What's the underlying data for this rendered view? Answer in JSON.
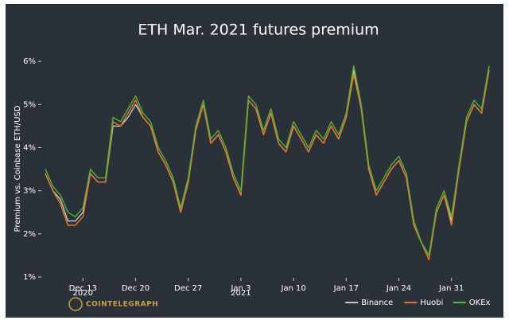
{
  "chart_data": {
    "type": "line",
    "title": "ETH Mar. 2021 futures premium",
    "y_label": "Premium vs. Coinbase ETH/USD",
    "watermark": "COINTELEGRAPH",
    "x": [
      "2020-12-08",
      "2020-12-09",
      "2020-12-10",
      "2020-12-11",
      "2020-12-12",
      "2020-12-13",
      "2020-12-14",
      "2020-12-15",
      "2020-12-16",
      "2020-12-17",
      "2020-12-18",
      "2020-12-19",
      "2020-12-20",
      "2020-12-21",
      "2020-12-22",
      "2020-12-23",
      "2020-12-24",
      "2020-12-25",
      "2020-12-26",
      "2020-12-27",
      "2020-12-28",
      "2020-12-29",
      "2020-12-30",
      "2020-12-31",
      "2021-01-01",
      "2021-01-02",
      "2021-01-03",
      "2021-01-04",
      "2021-01-05",
      "2021-01-06",
      "2021-01-07",
      "2021-01-08",
      "2021-01-09",
      "2021-01-10",
      "2021-01-11",
      "2021-01-12",
      "2021-01-13",
      "2021-01-14",
      "2021-01-15",
      "2021-01-16",
      "2021-01-17",
      "2021-01-18",
      "2021-01-19",
      "2021-01-20",
      "2021-01-21",
      "2021-01-22",
      "2021-01-23",
      "2021-01-24",
      "2021-01-25",
      "2021-01-26",
      "2021-01-27",
      "2021-01-28",
      "2021-01-29",
      "2021-01-30",
      "2021-01-31",
      "2021-02-01",
      "2021-02-02",
      "2021-02-03",
      "2021-02-04",
      "2021-02-05"
    ],
    "xlim": [
      "2020-12-08",
      "2021-02-05"
    ],
    "xticks": [
      {
        "value": "2020-12-13",
        "label": "Dec 13"
      },
      {
        "value": "2020-12-20",
        "label": "Dec 20"
      },
      {
        "value": "2020-12-27",
        "label": "Dec 27"
      },
      {
        "value": "2021-01-03",
        "label": "Jan 3"
      },
      {
        "value": "2021-01-10",
        "label": "Jan 10"
      },
      {
        "value": "2021-01-17",
        "label": "Jan 17"
      },
      {
        "value": "2021-01-24",
        "label": "Jan 24"
      },
      {
        "value": "2021-01-31",
        "label": "Jan 31"
      }
    ],
    "year_labels": [
      {
        "value": "2020-12-13",
        "label": "2020"
      },
      {
        "value": "2021-01-03",
        "label": "2021"
      }
    ],
    "ylim": [
      1,
      6.5
    ],
    "yticks": [
      {
        "value": 1,
        "label": "1%"
      },
      {
        "value": 2,
        "label": "2%"
      },
      {
        "value": 3,
        "label": "3%"
      },
      {
        "value": 4,
        "label": "4%"
      },
      {
        "value": 5,
        "label": "5%"
      },
      {
        "value": 6,
        "label": "6%"
      }
    ],
    "legend": "lower right",
    "series": [
      {
        "name": "Binance",
        "color": "#c8c8c8",
        "values": [
          3.4,
          3.0,
          2.8,
          2.3,
          2.3,
          2.5,
          3.4,
          3.2,
          3.2,
          4.5,
          4.5,
          4.7,
          5.0,
          4.7,
          4.5,
          3.9,
          3.6,
          3.2,
          2.5,
          3.2,
          4.4,
          5.0,
          4.1,
          4.3,
          3.9,
          3.3,
          2.9,
          5.1,
          4.9,
          4.3,
          4.8,
          4.1,
          3.9,
          4.5,
          4.2,
          3.9,
          4.3,
          4.1,
          4.5,
          4.2,
          4.7,
          5.8,
          4.9,
          3.5,
          2.9,
          3.2,
          3.5,
          3.7,
          3.3,
          2.2,
          1.8,
          1.5,
          2.5,
          2.9,
          2.3,
          3.5,
          4.6,
          5.0,
          4.8,
          5.8
        ]
      },
      {
        "name": "Huobi",
        "color": "#e8782c",
        "values": [
          3.4,
          3.0,
          2.7,
          2.2,
          2.2,
          2.4,
          3.4,
          3.2,
          3.2,
          4.6,
          4.5,
          4.8,
          5.1,
          4.7,
          4.5,
          3.9,
          3.6,
          3.2,
          2.5,
          3.2,
          4.4,
          5.0,
          4.1,
          4.3,
          3.9,
          3.3,
          2.9,
          5.1,
          4.9,
          4.3,
          4.8,
          4.1,
          3.9,
          4.5,
          4.2,
          3.9,
          4.3,
          4.1,
          4.5,
          4.2,
          4.7,
          5.7,
          4.9,
          3.5,
          2.9,
          3.2,
          3.5,
          3.7,
          3.3,
          2.2,
          1.8,
          1.4,
          2.5,
          2.9,
          2.2,
          3.5,
          4.6,
          5.0,
          4.8,
          5.8
        ]
      },
      {
        "name": "OKEx",
        "color": "#55b336",
        "values": [
          3.5,
          3.1,
          2.9,
          2.5,
          2.4,
          2.6,
          3.5,
          3.3,
          3.3,
          4.7,
          4.6,
          4.9,
          5.2,
          4.8,
          4.6,
          4.0,
          3.7,
          3.3,
          2.6,
          3.3,
          4.5,
          5.1,
          4.2,
          4.4,
          4.0,
          3.4,
          3.0,
          5.2,
          5.0,
          4.4,
          4.9,
          4.2,
          4.0,
          4.6,
          4.3,
          4.0,
          4.4,
          4.2,
          4.6,
          4.3,
          4.8,
          5.9,
          5.0,
          3.6,
          3.0,
          3.3,
          3.6,
          3.8,
          3.4,
          2.3,
          1.8,
          1.5,
          2.6,
          3.0,
          2.4,
          3.6,
          4.7,
          5.1,
          4.9,
          5.9
        ]
      }
    ]
  }
}
